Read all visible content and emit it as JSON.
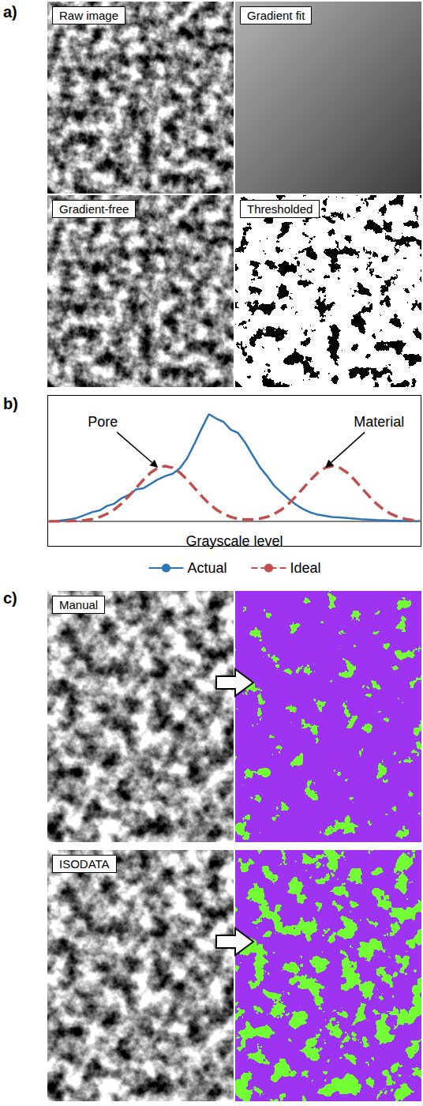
{
  "panel_a": {
    "letter": "a)",
    "images": [
      "Raw image",
      "Gradient fit",
      "Gradient-free",
      "Thresholded"
    ]
  },
  "chart_data": {
    "letter": "b)",
    "type": "line",
    "x_label": "Grayscale level",
    "x": [
      0,
      5,
      10,
      15,
      20,
      25,
      30,
      35,
      40,
      45,
      50,
      55,
      60,
      65,
      70,
      75,
      80,
      85,
      90,
      95,
      100,
      105,
      110,
      115,
      120,
      125,
      130,
      135,
      140,
      145,
      150,
      155,
      160,
      165,
      170,
      175,
      180,
      185,
      190,
      195,
      200,
      205,
      210,
      215,
      220,
      225,
      230,
      235,
      240,
      245,
      250,
      255
    ],
    "xlim": [
      0,
      255
    ],
    "ylim": [
      0,
      1
    ],
    "xticks": [],
    "yticks": [],
    "tick_labels": false,
    "grid": false,
    "legend": "bottom",
    "series": [
      {
        "name": "Actual",
        "color": "#2e75b6",
        "line_style": "solid",
        "values": [
          0,
          0.003,
          0.01,
          0.02,
          0.035,
          0.06,
          0.085,
          0.1,
          0.14,
          0.16,
          0.21,
          0.24,
          0.29,
          0.3,
          0.34,
          0.38,
          0.41,
          0.43,
          0.48,
          0.57,
          0.7,
          0.84,
          0.97,
          0.93,
          0.9,
          0.83,
          0.8,
          0.71,
          0.6,
          0.49,
          0.41,
          0.32,
          0.26,
          0.2,
          0.15,
          0.11,
          0.08,
          0.06,
          0.05,
          0.04,
          0.035,
          0.03,
          0.025,
          0.02,
          0.016,
          0.012,
          0.01,
          0.008,
          0.006,
          0.004,
          0.003,
          0.002
        ]
      },
      {
        "name": "Ideal",
        "color": "#c0504d",
        "line_style": "dashed",
        "values": [
          0,
          0,
          0.001,
          0.003,
          0.006,
          0.011,
          0.022,
          0.04,
          0.068,
          0.108,
          0.162,
          0.229,
          0.303,
          0.377,
          0.441,
          0.485,
          0.5,
          0.485,
          0.441,
          0.377,
          0.303,
          0.229,
          0.162,
          0.108,
          0.068,
          0.04,
          0.022,
          0.017,
          0.017,
          0.025,
          0.041,
          0.068,
          0.108,
          0.162,
          0.229,
          0.303,
          0.377,
          0.441,
          0.485,
          0.5,
          0.485,
          0.441,
          0.377,
          0.303,
          0.229,
          0.162,
          0.108,
          0.068,
          0.04,
          0.022,
          0.011,
          0.006
        ]
      }
    ],
    "annotations": [
      {
        "text": "Pore",
        "x": 75,
        "y": 0.485
      },
      {
        "text": "Material",
        "x": 190,
        "y": 0.485
      }
    ]
  },
  "panel_c": {
    "letter": "c)",
    "rows": [
      "Manual",
      "ISODATA"
    ]
  }
}
